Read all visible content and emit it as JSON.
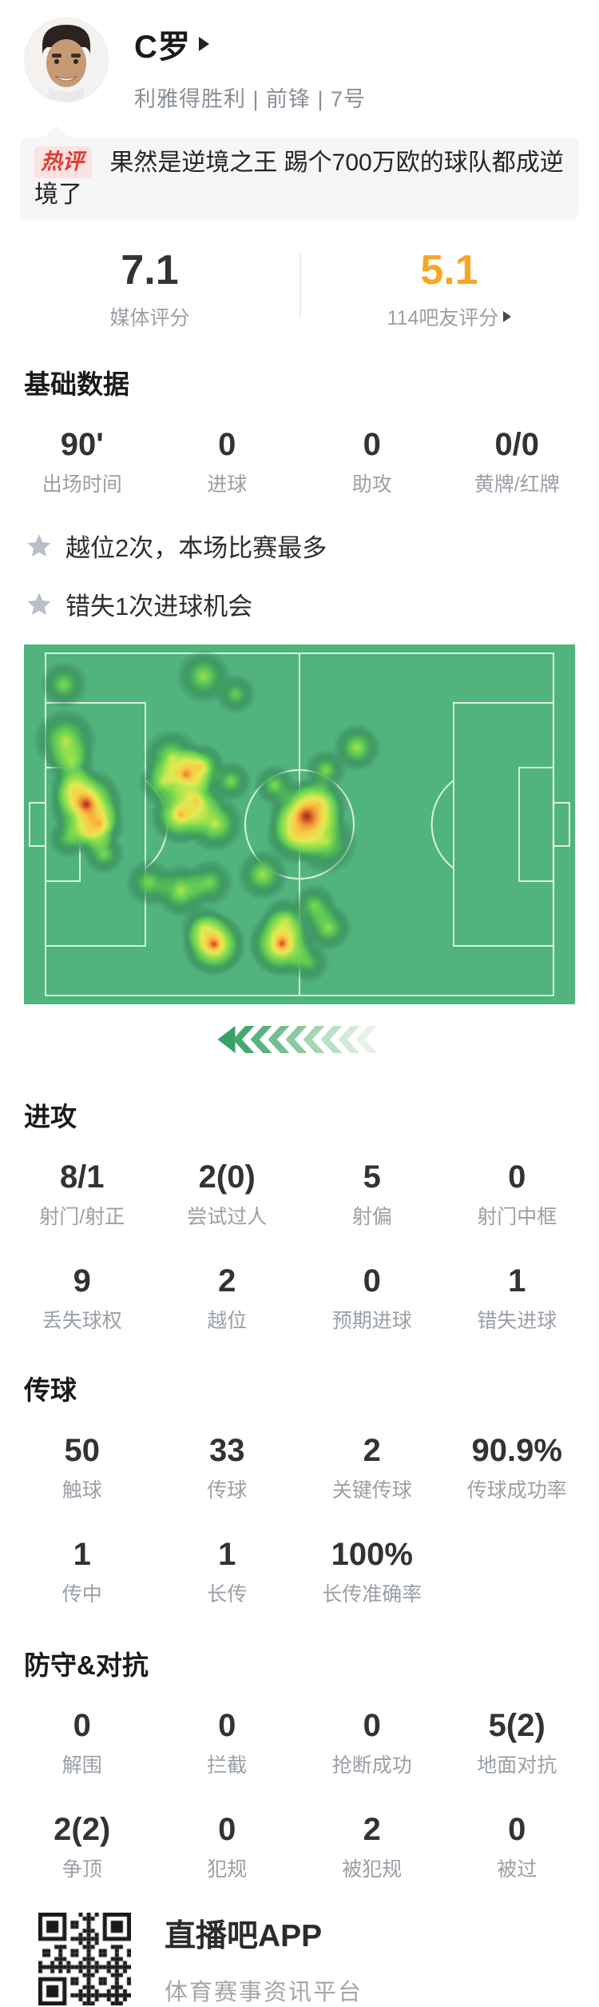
{
  "header": {
    "player_name": "C罗",
    "team_position_number": "利雅得胜利 | 前锋 | 7号"
  },
  "hot_comment": {
    "badge": "热评",
    "text": "果然是逆境之王 踢个700万欧的球队都成逆境了"
  },
  "ratings": {
    "media": {
      "value": "7.1",
      "label": "媒体评分",
      "color": "#333333"
    },
    "fans": {
      "value": "5.1",
      "label": "114吧友评分",
      "color": "#f6a623"
    }
  },
  "sections": {
    "basic": {
      "title": "基础数据",
      "stats": [
        {
          "value": "90'",
          "label": "出场时间"
        },
        {
          "value": "0",
          "label": "进球"
        },
        {
          "value": "0",
          "label": "助攻"
        },
        {
          "value": "0/0",
          "label": "黄牌/红牌"
        }
      ]
    },
    "attack": {
      "title": "进攻",
      "stats": [
        {
          "value": "8/1",
          "label": "射门/射正"
        },
        {
          "value": "2(0)",
          "label": "尝试过人"
        },
        {
          "value": "5",
          "label": "射偏"
        },
        {
          "value": "0",
          "label": "射门中框"
        },
        {
          "value": "9",
          "label": "丢失球权"
        },
        {
          "value": "2",
          "label": "越位"
        },
        {
          "value": "0",
          "label": "预期进球"
        },
        {
          "value": "1",
          "label": "错失进球"
        }
      ]
    },
    "passing": {
      "title": "传球",
      "stats": [
        {
          "value": "50",
          "label": "触球"
        },
        {
          "value": "33",
          "label": "传球"
        },
        {
          "value": "2",
          "label": "关键传球"
        },
        {
          "value": "90.9%",
          "label": "传球成功率"
        },
        {
          "value": "1",
          "label": "传中"
        },
        {
          "value": "1",
          "label": "长传"
        },
        {
          "value": "100%",
          "label": "长传准确率"
        }
      ]
    },
    "defense": {
      "title": "防守&对抗",
      "stats": [
        {
          "value": "0",
          "label": "解围"
        },
        {
          "value": "0",
          "label": "拦截"
        },
        {
          "value": "0",
          "label": "抢断成功"
        },
        {
          "value": "5(2)",
          "label": "地面对抗"
        },
        {
          "value": "2(2)",
          "label": "争顶"
        },
        {
          "value": "0",
          "label": "犯规"
        },
        {
          "value": "2",
          "label": "被犯规"
        },
        {
          "value": "0",
          "label": "被过"
        }
      ]
    }
  },
  "highlights": [
    {
      "text": "越位2次，本场比赛最多"
    },
    {
      "text": "错失1次进球机会"
    }
  ],
  "heatmap": {
    "field_color": "#52b57d",
    "line_color": "rgba(255,255,255,0.8)",
    "points": [
      [
        50,
        50,
        30,
        0.5
      ],
      [
        225,
        40,
        34,
        0.55
      ],
      [
        265,
        62,
        26,
        0.45
      ],
      [
        52,
        120,
        40,
        0.62
      ],
      [
        60,
        148,
        30,
        0.5
      ],
      [
        78,
        200,
        46,
        1.0
      ],
      [
        62,
        180,
        30,
        0.55
      ],
      [
        95,
        225,
        32,
        0.65
      ],
      [
        83,
        235,
        30,
        0.55
      ],
      [
        56,
        242,
        26,
        0.45
      ],
      [
        100,
        262,
        26,
        0.5
      ],
      [
        185,
        142,
        36,
        0.6
      ],
      [
        203,
        163,
        34,
        0.85
      ],
      [
        174,
        173,
        30,
        0.6
      ],
      [
        196,
        213,
        38,
        0.82
      ],
      [
        217,
        195,
        34,
        0.7
      ],
      [
        239,
        224,
        36,
        0.65
      ],
      [
        222,
        153,
        30,
        0.68
      ],
      [
        259,
        171,
        26,
        0.5
      ],
      [
        314,
        176,
        26,
        0.5
      ],
      [
        354,
        215,
        48,
        1.0
      ],
      [
        340,
        238,
        38,
        0.6
      ],
      [
        370,
        200,
        36,
        0.55
      ],
      [
        378,
        248,
        40,
        0.55
      ],
      [
        378,
        157,
        26,
        0.5
      ],
      [
        417,
        129,
        30,
        0.58
      ],
      [
        299,
        288,
        32,
        0.58
      ],
      [
        157,
        298,
        30,
        0.5
      ],
      [
        197,
        308,
        34,
        0.6
      ],
      [
        232,
        298,
        30,
        0.5
      ],
      [
        238,
        375,
        40,
        0.95
      ],
      [
        225,
        355,
        30,
        0.5
      ],
      [
        323,
        374,
        42,
        0.95
      ],
      [
        327,
        345,
        30,
        0.5
      ],
      [
        364,
        327,
        28,
        0.5
      ],
      [
        381,
        354,
        30,
        0.55
      ],
      [
        357,
        398,
        26,
        0.42
      ]
    ],
    "ramp": [
      {
        "stop": 0.0,
        "color": "rgba(46,110,80,0)"
      },
      {
        "stop": 0.12,
        "color": "rgba(48,115,82,0.35)"
      },
      {
        "stop": 0.25,
        "color": "rgba(60,150,85,0.75)"
      },
      {
        "stop": 0.4,
        "color": "rgba(95,200,85,0.95)"
      },
      {
        "stop": 0.55,
        "color": "rgba(150,225,75,1)"
      },
      {
        "stop": 0.68,
        "color": "rgba(225,235,85,1)"
      },
      {
        "stop": 0.78,
        "color": "rgba(250,205,70,1)"
      },
      {
        "stop": 0.86,
        "color": "rgba(240,150,55,1)"
      },
      {
        "stop": 0.93,
        "color": "rgba(205,85,40,1)"
      },
      {
        "stop": 1.0,
        "color": "rgba(150,45,30,1)"
      }
    ]
  },
  "direction_chevrons": {
    "count": 9,
    "colors": [
      "#3aa065",
      "#44a96e",
      "#58b47b",
      "#74c08d",
      "#8ccb9f",
      "#a5d5b1",
      "#bde0c5",
      "#d3ead8",
      "#e7f3ea"
    ]
  },
  "footer": {
    "app_name": "直播吧APP",
    "tagline": "体育赛事资讯平台"
  }
}
